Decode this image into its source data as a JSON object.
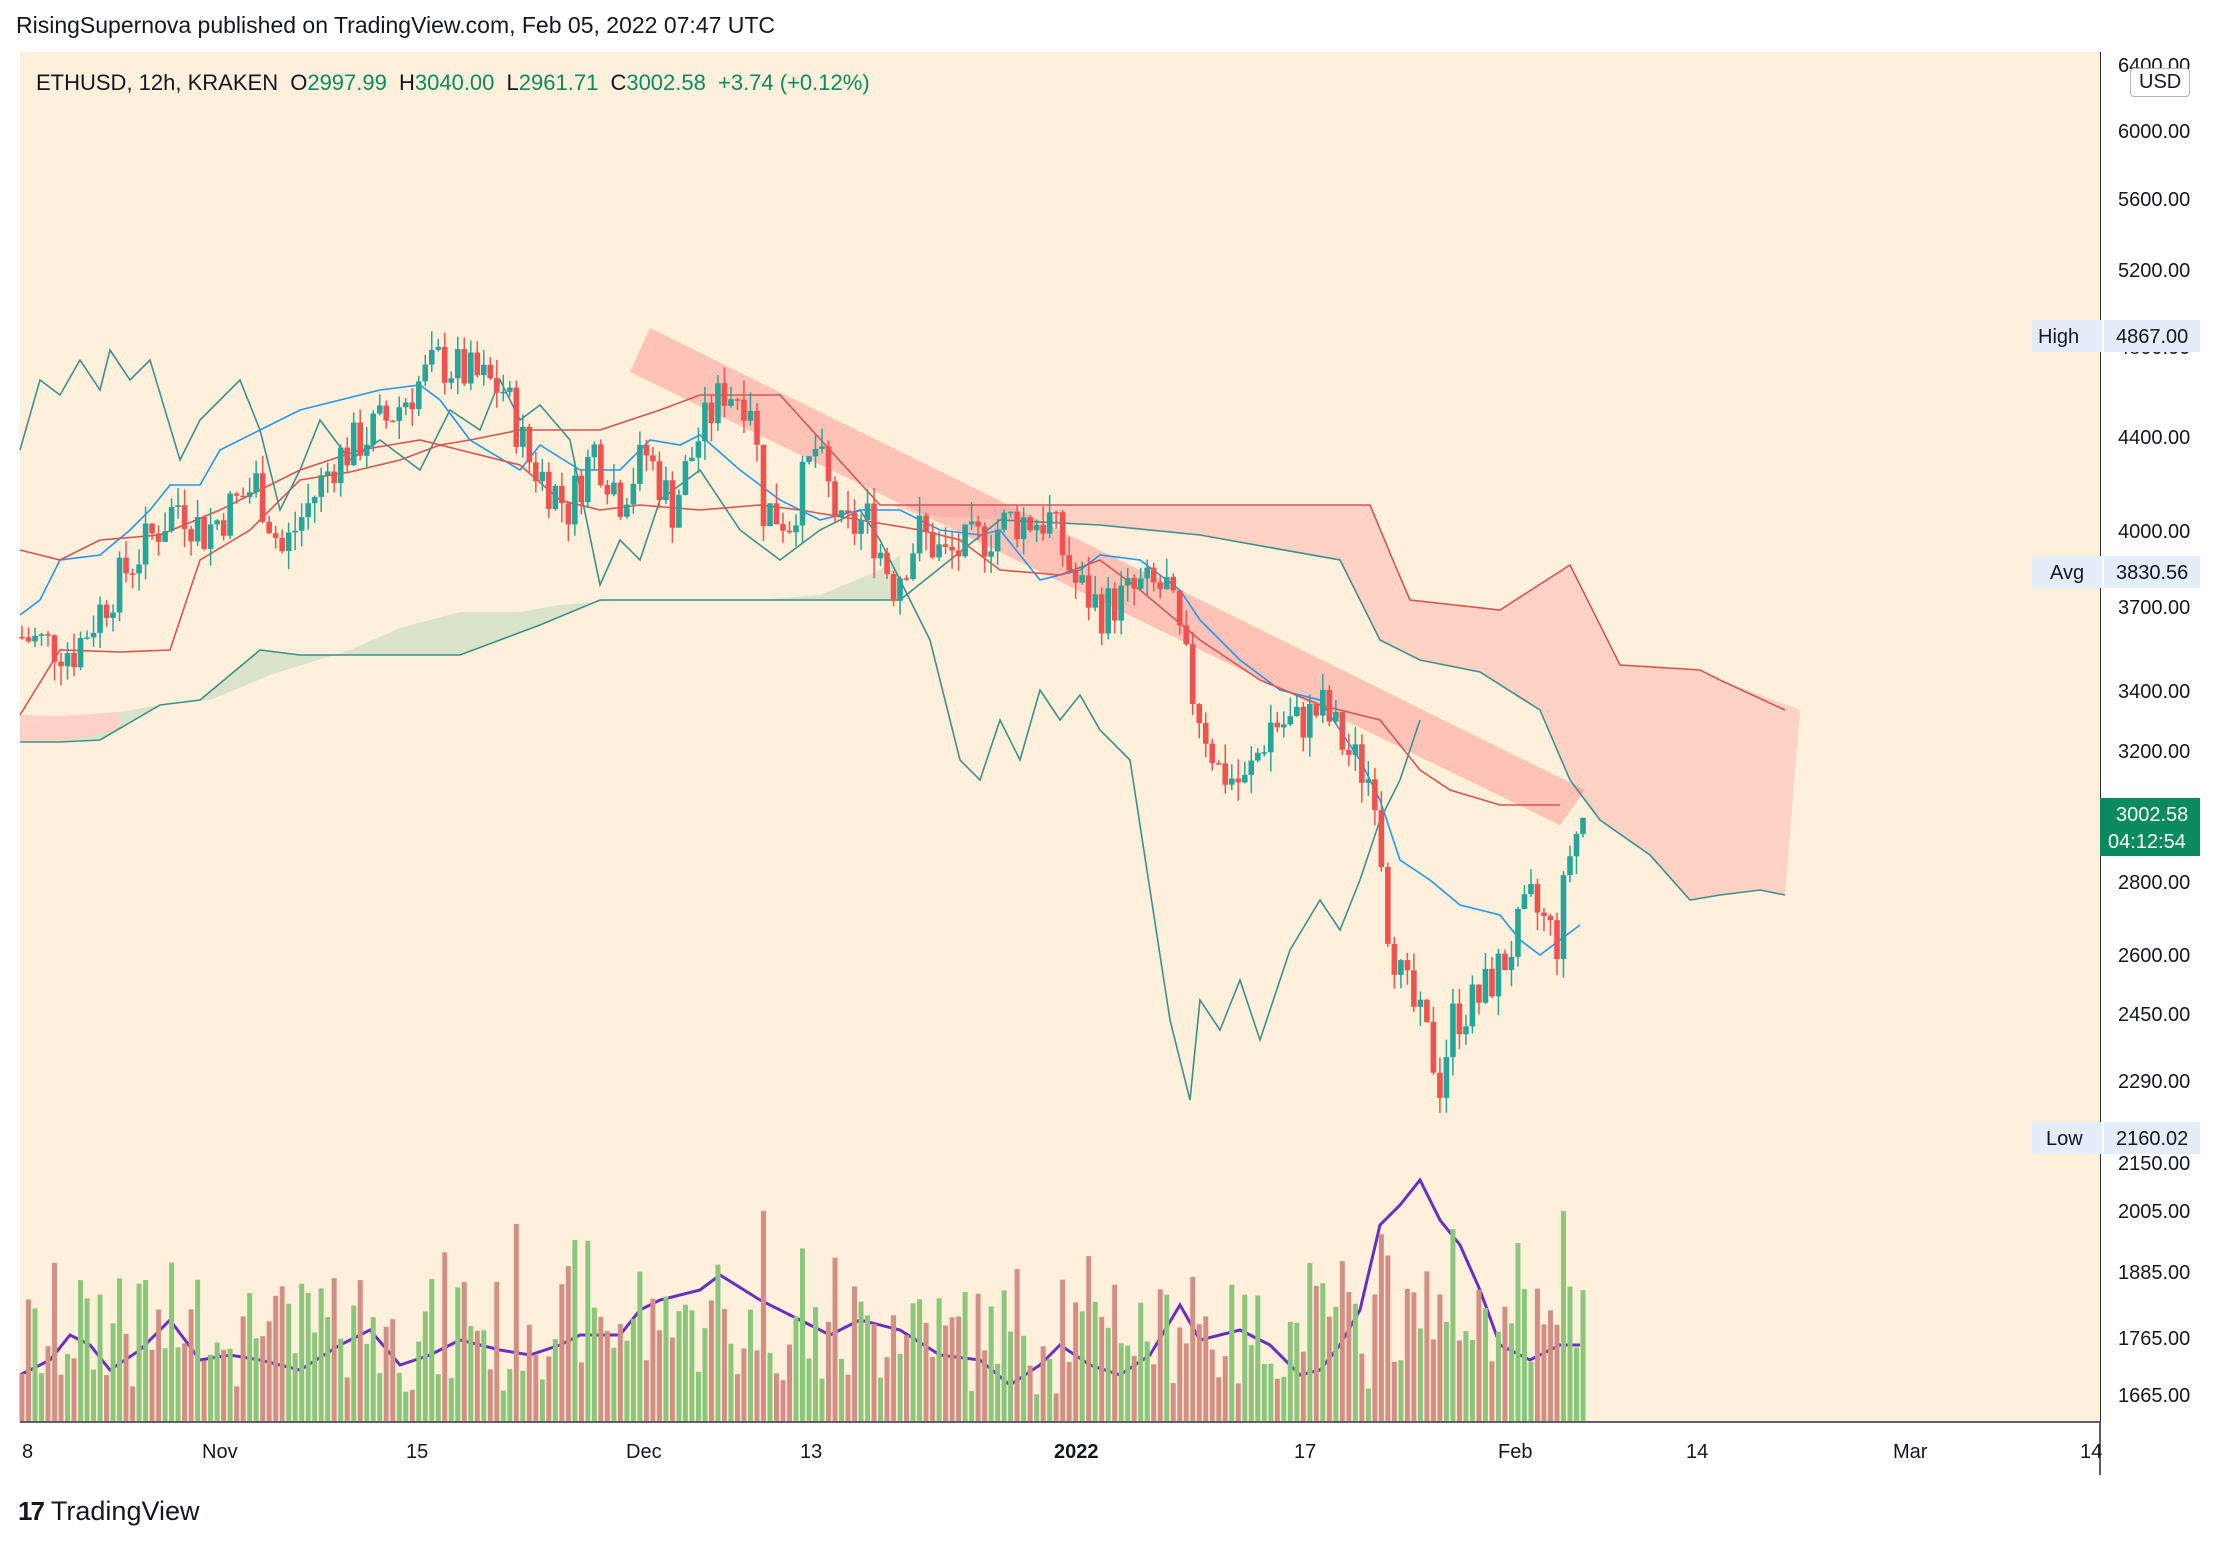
{
  "header": {
    "publisher_line": "RisingSupernova published on TradingView.com, Feb 05, 2022 07:47 UTC"
  },
  "legend": {
    "symbol": "ETHUSD, 12h, KRAKEN",
    "open_label": "O",
    "open": "2997.99",
    "high_label": "H",
    "high": "3040.00",
    "low_label": "L",
    "low": "2961.71",
    "close_label": "C",
    "close": "3002.58",
    "change": "+3.74 (+0.12%)"
  },
  "currency": "USD",
  "footer": {
    "brand": "TradingView",
    "logo_glyph": "17"
  },
  "price_tags": {
    "high": {
      "label": "High",
      "value": "4867.00"
    },
    "avg": {
      "label": "Avg",
      "value": "3830.56"
    },
    "low": {
      "label": "Low",
      "value": "2160.02"
    },
    "last": {
      "value": "3002.58",
      "countdown": "04:12:54"
    }
  },
  "colors": {
    "up": "#26a69a",
    "down": "#ef5350",
    "last_badge": "#0a8a5f",
    "tenkan": "#2196f3",
    "kijun": "#d9534f",
    "lagging": "#3f8f8f",
    "cloud_bull": "#d5e2c8",
    "cloud_bear": "#ffd0c4",
    "channel": "#ff8a8a",
    "volume_up": "#8bc77b",
    "volume_down": "#d48f85",
    "volume_ma": "#6a2fc0"
  },
  "chart_data": {
    "type": "candlestick",
    "symbol": "ETHUSD",
    "interval": "12h",
    "exchange": "KRAKEN",
    "y_axis_ticks": [
      "6400.00",
      "6000.00",
      "5600.00",
      "5200.00",
      "4800.00",
      "4400.00",
      "4000.00",
      "3700.00",
      "3400.00",
      "3200.00",
      "2800.00",
      "2600.00",
      "2450.00",
      "2290.00",
      "2150.00",
      "2005.00",
      "1885.00",
      "1765.00",
      "1665.00"
    ],
    "x_axis_ticks": [
      "8",
      "Nov",
      "15",
      "Dec",
      "13",
      "2022",
      "17",
      "Feb",
      "14",
      "Mar",
      "14"
    ],
    "ylim": [
      1620,
      6500
    ],
    "log_scale": true,
    "indicators": [
      "Ichimoku Cloud",
      "Volume",
      "Volume MA"
    ],
    "annotations": [
      "descending channel"
    ],
    "ohlc_last": {
      "open": 2997.99,
      "high": 3040.0,
      "low": 2961.71,
      "close": 3002.58
    },
    "period_high": 4867.0,
    "period_avg": 3830.56,
    "period_low": 2160.02,
    "close_path": [
      [
        "2021-10-08",
        3600
      ],
      [
        "2021-10-12",
        3550
      ],
      [
        "2021-10-16",
        3850
      ],
      [
        "2021-10-20",
        4120
      ],
      [
        "2021-10-22",
        4000
      ],
      [
        "2021-10-26",
        4200
      ],
      [
        "2021-10-28",
        3920
      ],
      [
        "2021-11-01",
        4300
      ],
      [
        "2021-11-05",
        4480
      ],
      [
        "2021-11-09",
        4750
      ],
      [
        "2021-11-11",
        4700
      ],
      [
        "2021-11-14",
        4620
      ],
      [
        "2021-11-16",
        4300
      ],
      [
        "2021-11-19",
        4100
      ],
      [
        "2021-11-21",
        4350
      ],
      [
        "2021-11-23",
        4150
      ],
      [
        "2021-11-25",
        4330
      ],
      [
        "2021-11-27",
        4100
      ],
      [
        "2021-11-29",
        4400
      ],
      [
        "2021-12-01",
        4620
      ],
      [
        "2021-12-03",
        4580
      ],
      [
        "2021-12-04",
        4100
      ],
      [
        "2021-12-06",
        4050
      ],
      [
        "2021-12-08",
        4350
      ],
      [
        "2021-12-10",
        4000
      ],
      [
        "2021-12-12",
        4050
      ],
      [
        "2021-12-14",
        3800
      ],
      [
        "2021-12-16",
        4000
      ],
      [
        "2021-12-18",
        3900
      ],
      [
        "2021-12-20",
        3950
      ],
      [
        "2021-12-23",
        4050
      ],
      [
        "2021-12-26",
        4050
      ],
      [
        "2021-12-28",
        3800
      ],
      [
        "2021-12-30",
        3700
      ],
      [
        "2022-01-02",
        3780
      ],
      [
        "2022-01-04",
        3780
      ],
      [
        "2022-01-06",
        3400
      ],
      [
        "2022-01-08",
        3150
      ],
      [
        "2022-01-10",
        3100
      ],
      [
        "2022-01-12",
        3300
      ],
      [
        "2022-01-14",
        3300
      ],
      [
        "2022-01-16",
        3350
      ],
      [
        "2022-01-18",
        3200
      ],
      [
        "2022-01-20",
        3100
      ],
      [
        "2022-01-21",
        2700
      ],
      [
        "2022-01-22",
        2550
      ],
      [
        "2022-01-24",
        2400
      ],
      [
        "2022-01-25",
        2300
      ],
      [
        "2022-01-26",
        2450
      ],
      [
        "2022-01-28",
        2500
      ],
      [
        "2022-01-30",
        2600
      ],
      [
        "2022-02-01",
        2750
      ],
      [
        "2022-02-03",
        2650
      ],
      [
        "2022-02-04",
        2900
      ],
      [
        "2022-02-05",
        3002.58
      ]
    ]
  }
}
